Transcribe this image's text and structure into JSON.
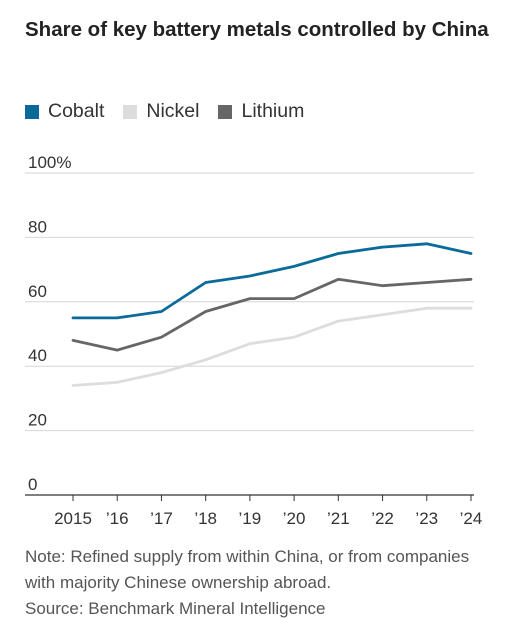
{
  "title": "Share of key battery metals controlled by China",
  "legend": [
    {
      "label": "Cobalt",
      "color": "#0a6a9a"
    },
    {
      "label": "Nickel",
      "color": "#dddddd"
    },
    {
      "label": "Lithium",
      "color": "#666666"
    }
  ],
  "note": "Note: Refined supply from within China, or from companies with majority Chinese ownership abroad.",
  "source": "Source: Benchmark Mineral Intelligence",
  "chart_data": {
    "type": "line",
    "title": "Share of key battery metals controlled by China",
    "x": [
      "2015",
      "’16",
      "’17",
      "’18",
      "’19",
      "’20",
      "’21",
      "’22",
      "’23",
      "’24"
    ],
    "yticks": [
      "100%",
      "80",
      "60",
      "40",
      "20",
      "0"
    ],
    "ylim": [
      0,
      100
    ],
    "grid": true,
    "legend_position": "top-left",
    "series": [
      {
        "name": "Cobalt",
        "color": "#0a6a9a",
        "values": [
          55,
          55,
          57,
          66,
          68,
          71,
          75,
          77,
          78,
          75
        ]
      },
      {
        "name": "Nickel",
        "color": "#dddddd",
        "values": [
          34,
          35,
          38,
          42,
          47,
          49,
          54,
          56,
          58,
          58
        ]
      },
      {
        "name": "Lithium",
        "color": "#666666",
        "values": [
          48,
          45,
          49,
          57,
          61,
          61,
          67,
          65,
          66,
          67
        ]
      }
    ]
  }
}
